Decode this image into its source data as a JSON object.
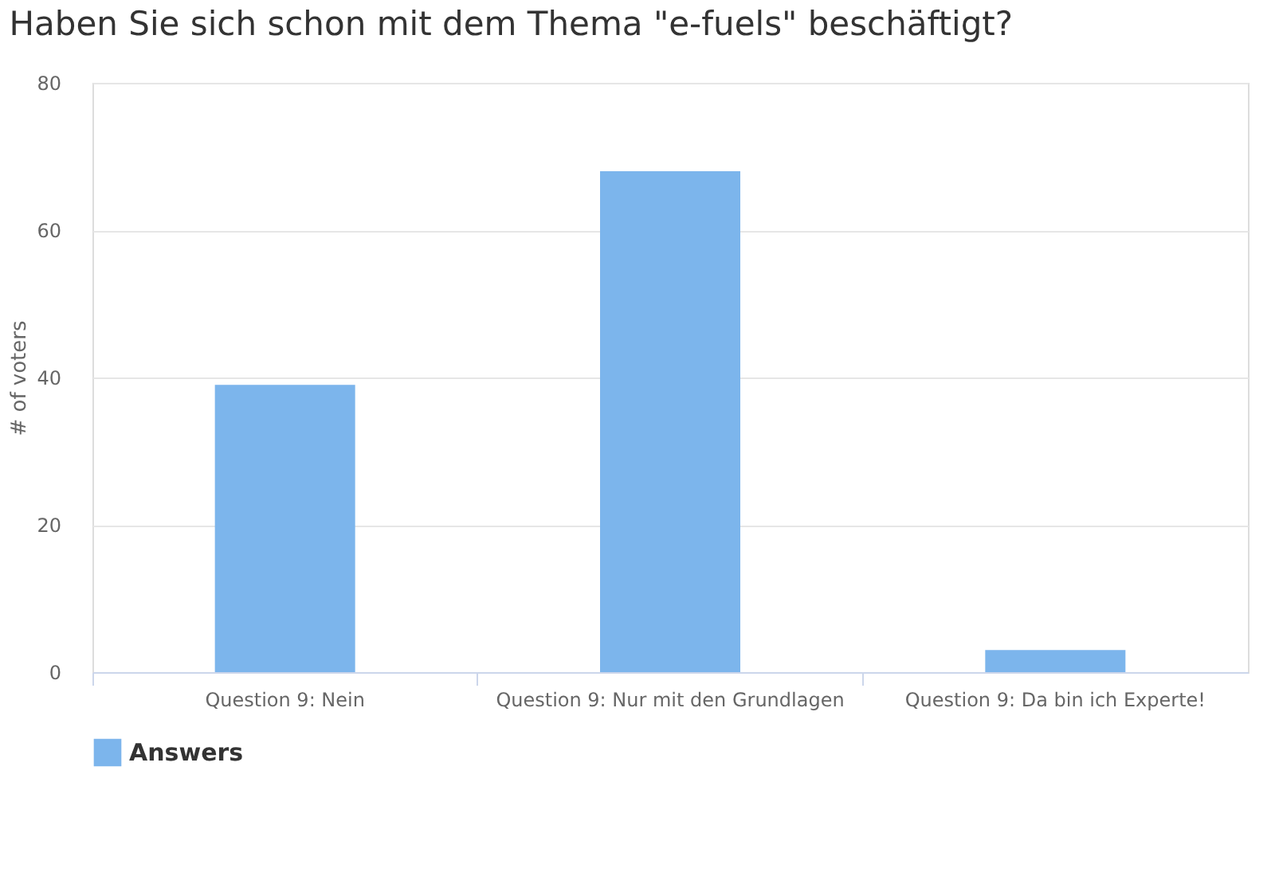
{
  "chart_data": {
    "type": "bar",
    "title": "Haben Sie sich schon mit dem Thema \"e-fuels\" beschäftigt?",
    "ylabel": "# of voters",
    "categories": [
      "Question 9: Nein",
      "Question 9: Nur mit den Grundlagen",
      "Question 9: Da bin ich Experte!"
    ],
    "series": [
      {
        "name": "Answers",
        "color": "#7cb5ec",
        "values": [
          39,
          68,
          3
        ]
      }
    ],
    "ylim": [
      0,
      80
    ],
    "yticks": [
      0,
      20,
      40,
      60,
      80
    ],
    "grid": "y",
    "legend": "bottom"
  }
}
